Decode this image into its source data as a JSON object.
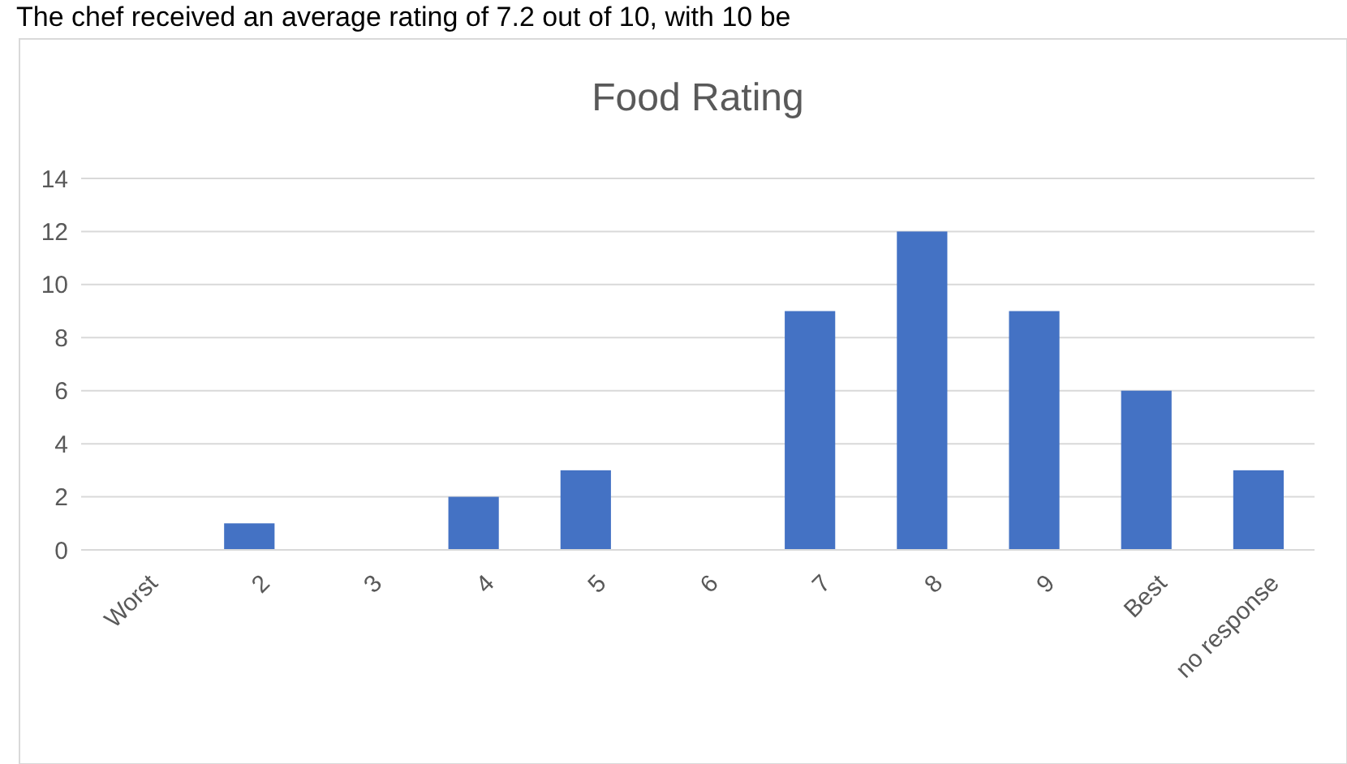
{
  "chart_data": {
    "type": "bar",
    "title": "Food Rating",
    "annotations": [
      "The chef received an average rating of 7.2 out of 10, with 10 be"
    ],
    "categories": [
      "Worst",
      "2",
      "3",
      "4",
      "5",
      "6",
      "7",
      "8",
      "9",
      "Best",
      "no response"
    ],
    "values": [
      0,
      1,
      0,
      2,
      3,
      0,
      9,
      12,
      9,
      6,
      3
    ],
    "color": "#4472c4",
    "ylim": [
      0,
      14
    ],
    "yticks": [
      0,
      2,
      4,
      6,
      8,
      10,
      12,
      14
    ],
    "grid": "y"
  }
}
